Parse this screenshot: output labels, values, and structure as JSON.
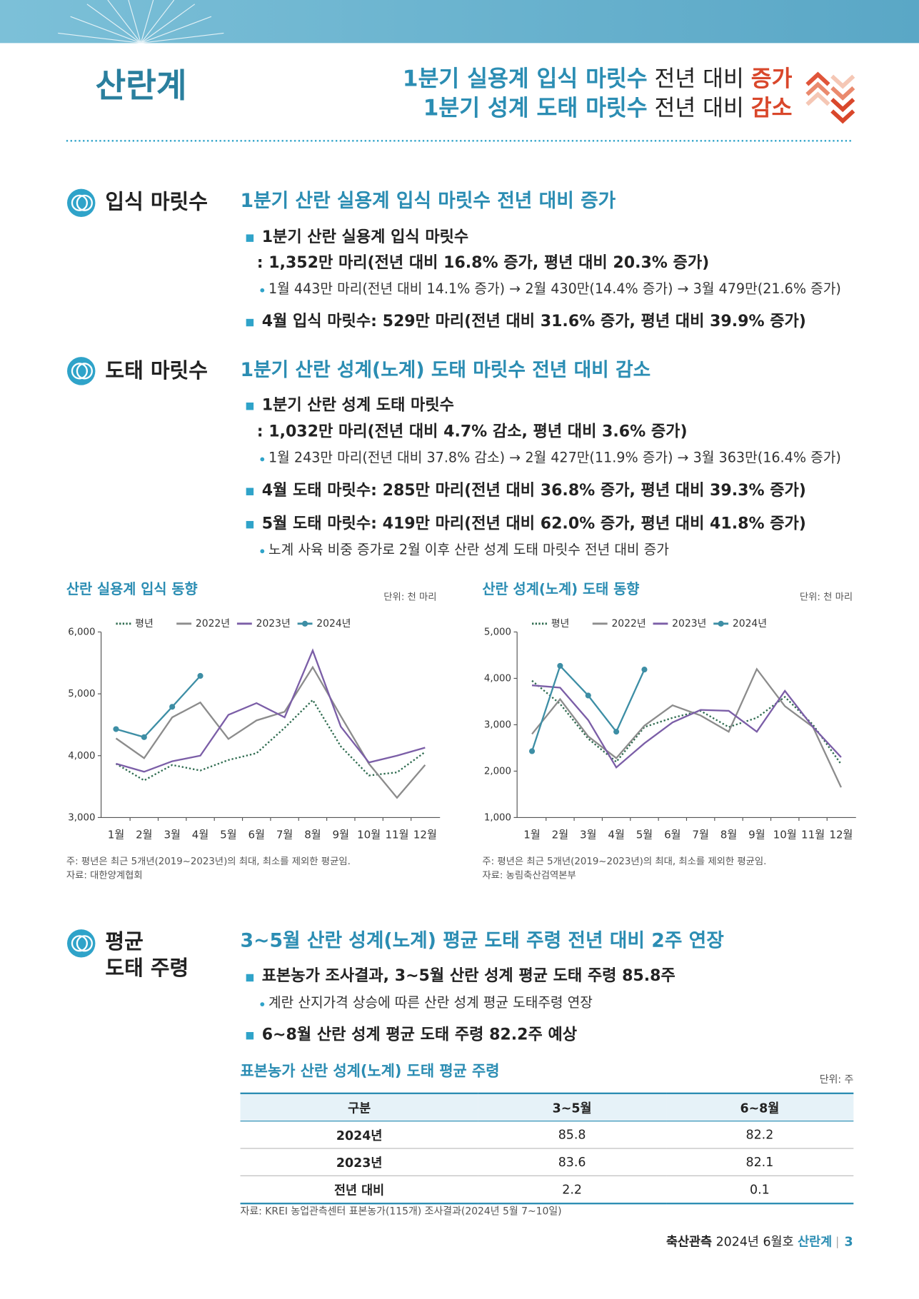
{
  "header": {
    "title": "산란계",
    "headline": [
      [
        "1분기 실용계 입식 마릿수",
        " 전년 대비 ",
        "증가"
      ],
      [
        "1분기 성계 도태 마릿수",
        " 전년 대비 ",
        "감소"
      ]
    ]
  },
  "sections": [
    {
      "label": "입식 마릿수",
      "heading": "1분기 산란 실용계 입식 마릿수 전년 대비 증가",
      "items": [
        "1분기 산란 실용계 입식 마릿수",
        ": 1,352만 마리(전년 대비 16.8% 증가, 평년 대비 20.3% 증가)",
        "1월 443만 마리(전년 대비 14.1% 증가) → 2월 430만(14.4% 증가) → 3월 479만(21.6% 증가)",
        "4월 입식 마릿수: 529만 마리(전년 대비 31.6% 증가, 평년 대비 39.9% 증가)"
      ]
    },
    {
      "label": "도태 마릿수",
      "heading": "1분기 산란 성계(노계) 도태 마릿수 전년 대비 감소",
      "items": [
        "1분기 산란 성계 도태 마릿수",
        ": 1,032만 마리(전년 대비 4.7% 감소, 평년 대비 3.6% 증가)",
        "1월 243만 마리(전년 대비 37.8% 감소) → 2월 427만(11.9% 증가) → 3월 363만(16.4% 증가)",
        "4월 도태 마릿수: 285만 마리(전년 대비 36.8% 증가, 평년 대비 39.3% 증가)",
        "5월 도태 마릿수: 419만 마리(전년 대비 62.0% 증가, 평년 대비 41.8% 증가)",
        "노계 사육 비중 증가로 2월 이후 산란 성계 도태 마릿수 전년 대비 증가"
      ]
    },
    {
      "label": [
        "평균",
        "도태 주령"
      ],
      "heading": "3~5월 산란 성계(노계) 평균 도태 주령 전년 대비 2주 연장",
      "items": [
        "표본농가 조사결과, 3~5월 산란 성계 평균 도태 주령 85.8주",
        "계란 산지가격 상승에 따른 산란 성계 평균 도태주령 연장",
        "6~8월 산란 성계 평균 도태 주령 82.2주 예상"
      ]
    }
  ],
  "chart_data": [
    {
      "type": "line",
      "title": "산란 실용계 입식 동향",
      "unit": "단위: 천 마리",
      "note": "주: 평년은 최근 5개년(2019~2023년)의 최대, 최소를 제외한 평균임.",
      "source": "자료: 대한양계협회",
      "categories": [
        "1월",
        "2월",
        "3월",
        "4월",
        "5월",
        "6월",
        "7월",
        "8월",
        "9월",
        "10월",
        "11월",
        "12월"
      ],
      "ylim": [
        3000,
        6000
      ],
      "yticks": [
        {
          "value": 3000,
          "label": "3,000"
        },
        {
          "value": 4000,
          "label": "4,000"
        },
        {
          "value": 5000,
          "label": "5,000"
        },
        {
          "value": 6000,
          "label": "6,000"
        }
      ],
      "grid": false,
      "series": [
        {
          "name": "평년",
          "color": "#2e6b4f",
          "style": "dotted",
          "markers": false,
          "values": [
            3870,
            3600,
            3850,
            3760,
            3930,
            4040,
            4450,
            4900,
            4150,
            3680,
            3730,
            4060
          ]
        },
        {
          "name": "2022년",
          "color": "#8c8c8c",
          "style": "solid",
          "markers": false,
          "values": [
            4280,
            3960,
            4620,
            4860,
            4270,
            4570,
            4710,
            5430,
            4640,
            3870,
            3320,
            3850
          ]
        },
        {
          "name": "2023년",
          "color": "#7b5ea7",
          "style": "solid",
          "markers": false,
          "values": [
            3870,
            3740,
            3910,
            4000,
            4660,
            4850,
            4620,
            5700,
            4470,
            3890,
            4000,
            4130
          ]
        },
        {
          "name": "2024년",
          "color": "#3d8ea5",
          "style": "solid",
          "markers": true,
          "values": [
            4430,
            4300,
            4790,
            5290,
            null,
            null,
            null,
            null,
            null,
            null,
            null,
            null
          ]
        }
      ]
    },
    {
      "type": "line",
      "title": "산란 성계(노계) 도태 동향",
      "unit": "단위: 천 마리",
      "note": "주: 평년은 최근 5개년(2019~2023년)의 최대, 최소를 제외한 평균임.",
      "source": "자료: 농림축산검역본부",
      "categories": [
        "1월",
        "2월",
        "3월",
        "4월",
        "5월",
        "6월",
        "7월",
        "8월",
        "9월",
        "10월",
        "11월",
        "12월"
      ],
      "ylim": [
        1000,
        5000
      ],
      "yticks": [
        {
          "value": 1000,
          "label": "1,000"
        },
        {
          "value": 2000,
          "label": "2,000"
        },
        {
          "value": 3000,
          "label": "3,000"
        },
        {
          "value": 4000,
          "label": "4,000"
        },
        {
          "value": 5000,
          "label": "5,000"
        }
      ],
      "grid": false,
      "series": [
        {
          "name": "평년",
          "color": "#2e6b4f",
          "style": "dotted",
          "markers": false,
          "values": [
            3950,
            3450,
            2700,
            2200,
            2950,
            3150,
            3300,
            2950,
            3150,
            3600,
            3000,
            2150
          ]
        },
        {
          "name": "2022년",
          "color": "#8c8c8c",
          "style": "solid",
          "markers": false,
          "values": [
            2800,
            3550,
            2750,
            2280,
            2980,
            3420,
            3200,
            2850,
            4200,
            3400,
            2950,
            1650
          ]
        },
        {
          "name": "2023년",
          "color": "#7b5ea7",
          "style": "solid",
          "markers": false,
          "values": [
            3850,
            3800,
            3100,
            2080,
            2600,
            3050,
            3320,
            3300,
            2850,
            3730,
            2950,
            2300
          ]
        },
        {
          "name": "2024년",
          "color": "#3d8ea5",
          "style": "solid",
          "markers": true,
          "values": [
            2430,
            4270,
            3630,
            2850,
            4190,
            null,
            null,
            null,
            null,
            null,
            null,
            null
          ]
        }
      ]
    }
  ],
  "table": {
    "title": "표본농가 산란 성계(노계) 도태 평균 주령",
    "unit": "단위: 주",
    "columns": [
      "구분",
      "3~5월",
      "6~8월"
    ],
    "rows": [
      [
        "2024년",
        85.8,
        82.2
      ],
      [
        "2023년",
        83.6,
        82.1
      ],
      [
        "전년 대비",
        2.2,
        0.1
      ]
    ],
    "source": "자료: KREI 농업관측센터 표본농가(115개) 조사결과(2024년 5월 7~10일)"
  },
  "footer": [
    "축산관측",
    " 2024년 6월호 ",
    "산란계",
    "3"
  ]
}
